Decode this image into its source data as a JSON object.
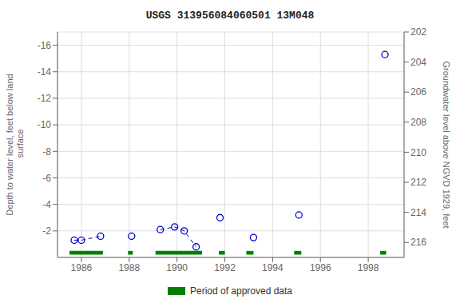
{
  "chart_data": {
    "type": "scatter",
    "title": "USGS 313956084060501 13M048",
    "ylabel": "Depth to water level, feet below land\n surface",
    "y2label": "Groundwater level above NGVD 1929, feet",
    "xlim": [
      1985.0,
      1999.5
    ],
    "ylim": [
      0,
      -17
    ],
    "y2lim": [
      217,
      202
    ],
    "xticks": [
      1986,
      1988,
      1990,
      1992,
      1994,
      1996,
      1998
    ],
    "yticks": [
      -16,
      -14,
      -12,
      -10,
      -8,
      -6,
      -4,
      -2
    ],
    "y2ticks": [
      202,
      204,
      206,
      208,
      210,
      212,
      214,
      216
    ],
    "grid": true,
    "color": "#0000cc",
    "marker": "open_circle",
    "line_style": "dashed",
    "x": [
      1985.7,
      1986.0,
      1986.8,
      1988.1,
      1989.3,
      1989.9,
      1990.3,
      1990.8,
      1991.8,
      1993.2,
      1995.1,
      1998.7
    ],
    "values": [
      -1.3,
      -1.3,
      -1.6,
      -1.6,
      -2.1,
      -2.3,
      -2.0,
      -0.8,
      -3.0,
      -1.5,
      -3.2,
      -15.3
    ],
    "connected_groups": [
      [
        0,
        1,
        2
      ],
      [
        4,
        5,
        6,
        7
      ]
    ],
    "approved": {
      "label": "Period of approved data",
      "color": "#008000",
      "y": -0.35,
      "height": 0.28,
      "periods": [
        {
          "x_start": 1985.5,
          "x_end": 1986.9
        },
        {
          "x_start": 1987.95,
          "x_end": 1988.15
        },
        {
          "x_start": 1989.1,
          "x_end": 1991.05
        },
        {
          "x_start": 1991.75,
          "x_end": 1992.0
        },
        {
          "x_start": 1992.9,
          "x_end": 1993.2
        },
        {
          "x_start": 1994.9,
          "x_end": 1995.2
        },
        {
          "x_start": 1998.5,
          "x_end": 1998.75
        }
      ]
    },
    "legend": "lower center"
  }
}
